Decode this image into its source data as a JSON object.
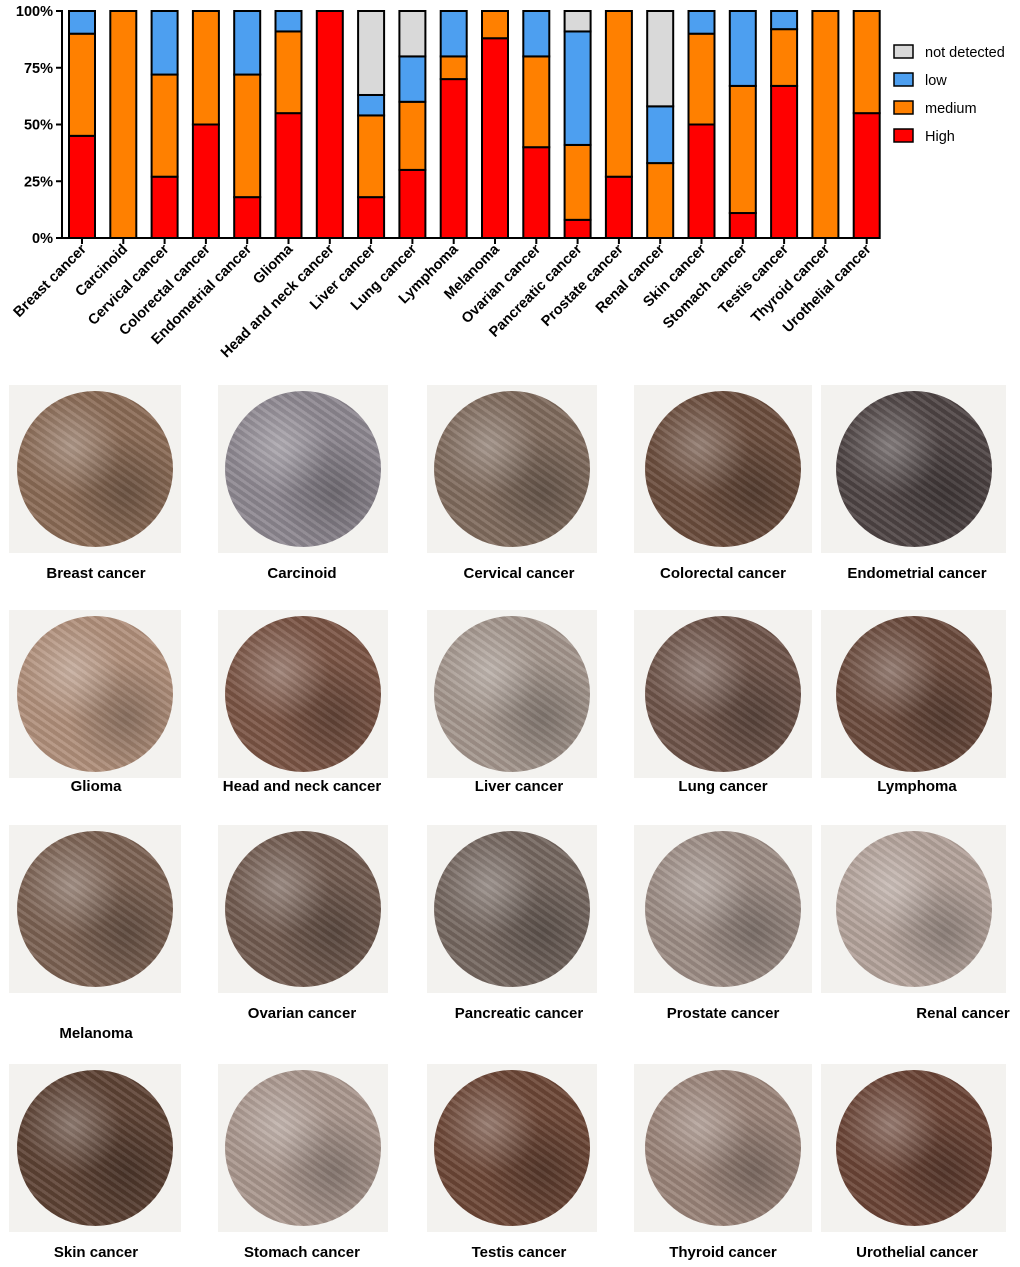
{
  "chart_data": {
    "type": "bar",
    "stacked": true,
    "categories": [
      "Breast cancer",
      "Carcinoid",
      "Cervical cancer",
      "Colorectal cancer",
      "Endometrial cancer",
      "Glioma",
      "Head and neck cancer",
      "Liver cancer",
      "Lung cancer",
      "Lymphoma",
      "Melanoma",
      "Ovarian cancer",
      "Pancreatic cancer",
      "Prostate cancer",
      "Renal cancer",
      "Skin cancer",
      "Stomach cancer",
      "Testis cancer",
      "Thyroid cancer",
      "Urothelial cancer"
    ],
    "series": [
      {
        "name": "High",
        "color": "#ff0000",
        "values": [
          45,
          0,
          27,
          50,
          18,
          55,
          100,
          18,
          30,
          70,
          88,
          40,
          8,
          27,
          0,
          50,
          11,
          67,
          0,
          55
        ]
      },
      {
        "name": "medium",
        "color": "#ff8000",
        "values": [
          45,
          100,
          45,
          50,
          54,
          36,
          0,
          36,
          30,
          10,
          12,
          40,
          33,
          73,
          33,
          40,
          56,
          25,
          100,
          45
        ]
      },
      {
        "name": "low",
        "color": "#4d9ff0",
        "values": [
          10,
          0,
          28,
          0,
          28,
          9,
          0,
          9,
          20,
          20,
          0,
          20,
          50,
          0,
          25,
          10,
          33,
          8,
          0,
          0
        ]
      },
      {
        "name": "not detected",
        "color": "#d9d9d9",
        "values": [
          0,
          0,
          0,
          0,
          0,
          0,
          0,
          37,
          20,
          0,
          0,
          0,
          9,
          0,
          42,
          0,
          0,
          0,
          0,
          0
        ]
      }
    ],
    "ylim": [
      0,
      100
    ],
    "yticks": [
      "0%",
      "25%",
      "50%",
      "75%",
      "100%"
    ],
    "legend_order": [
      "not detected",
      "low",
      "medium",
      "High"
    ],
    "legend_position": "right",
    "xlabel": "",
    "ylabel": ""
  },
  "panels": [
    {
      "label": "Breast cancer",
      "tone": "#8a6a55"
    },
    {
      "label": "Carcinoid",
      "tone": "#8d8790"
    },
    {
      "label": "Cervical cancer",
      "tone": "#7f6a5c"
    },
    {
      "label": "Colorectal cancer",
      "tone": "#6a4c3c"
    },
    {
      "label": "Endometrial cancer",
      "tone": "#4e4444"
    },
    {
      "label": "Glioma",
      "tone": "#b08f7a"
    },
    {
      "label": "Head and neck cancer",
      "tone": "#7a5444"
    },
    {
      "label": "Liver cancer",
      "tone": "#a3958c"
    },
    {
      "label": "Lung cancer",
      "tone": "#6e5449"
    },
    {
      "label": "Lymphoma",
      "tone": "#6a4a3c"
    },
    {
      "label": "Melanoma",
      "tone": "#7b6152"
    },
    {
      "label": "Ovarian cancer",
      "tone": "#715a4f"
    },
    {
      "label": "Pancreatic cancer",
      "tone": "#74665f"
    },
    {
      "label": "Prostate cancer",
      "tone": "#9c8c84"
    },
    {
      "label": "Renal cancer",
      "tone": "#b3a29a"
    },
    {
      "label": "Skin cancer",
      "tone": "#5d4234"
    },
    {
      "label": "Stomach cancer",
      "tone": "#a9968d"
    },
    {
      "label": "Testis cancer",
      "tone": "#6c4636"
    },
    {
      "label": "Thyroid cancer",
      "tone": "#9a8378"
    },
    {
      "label": "Urothelial cancer",
      "tone": "#6a4436"
    }
  ]
}
